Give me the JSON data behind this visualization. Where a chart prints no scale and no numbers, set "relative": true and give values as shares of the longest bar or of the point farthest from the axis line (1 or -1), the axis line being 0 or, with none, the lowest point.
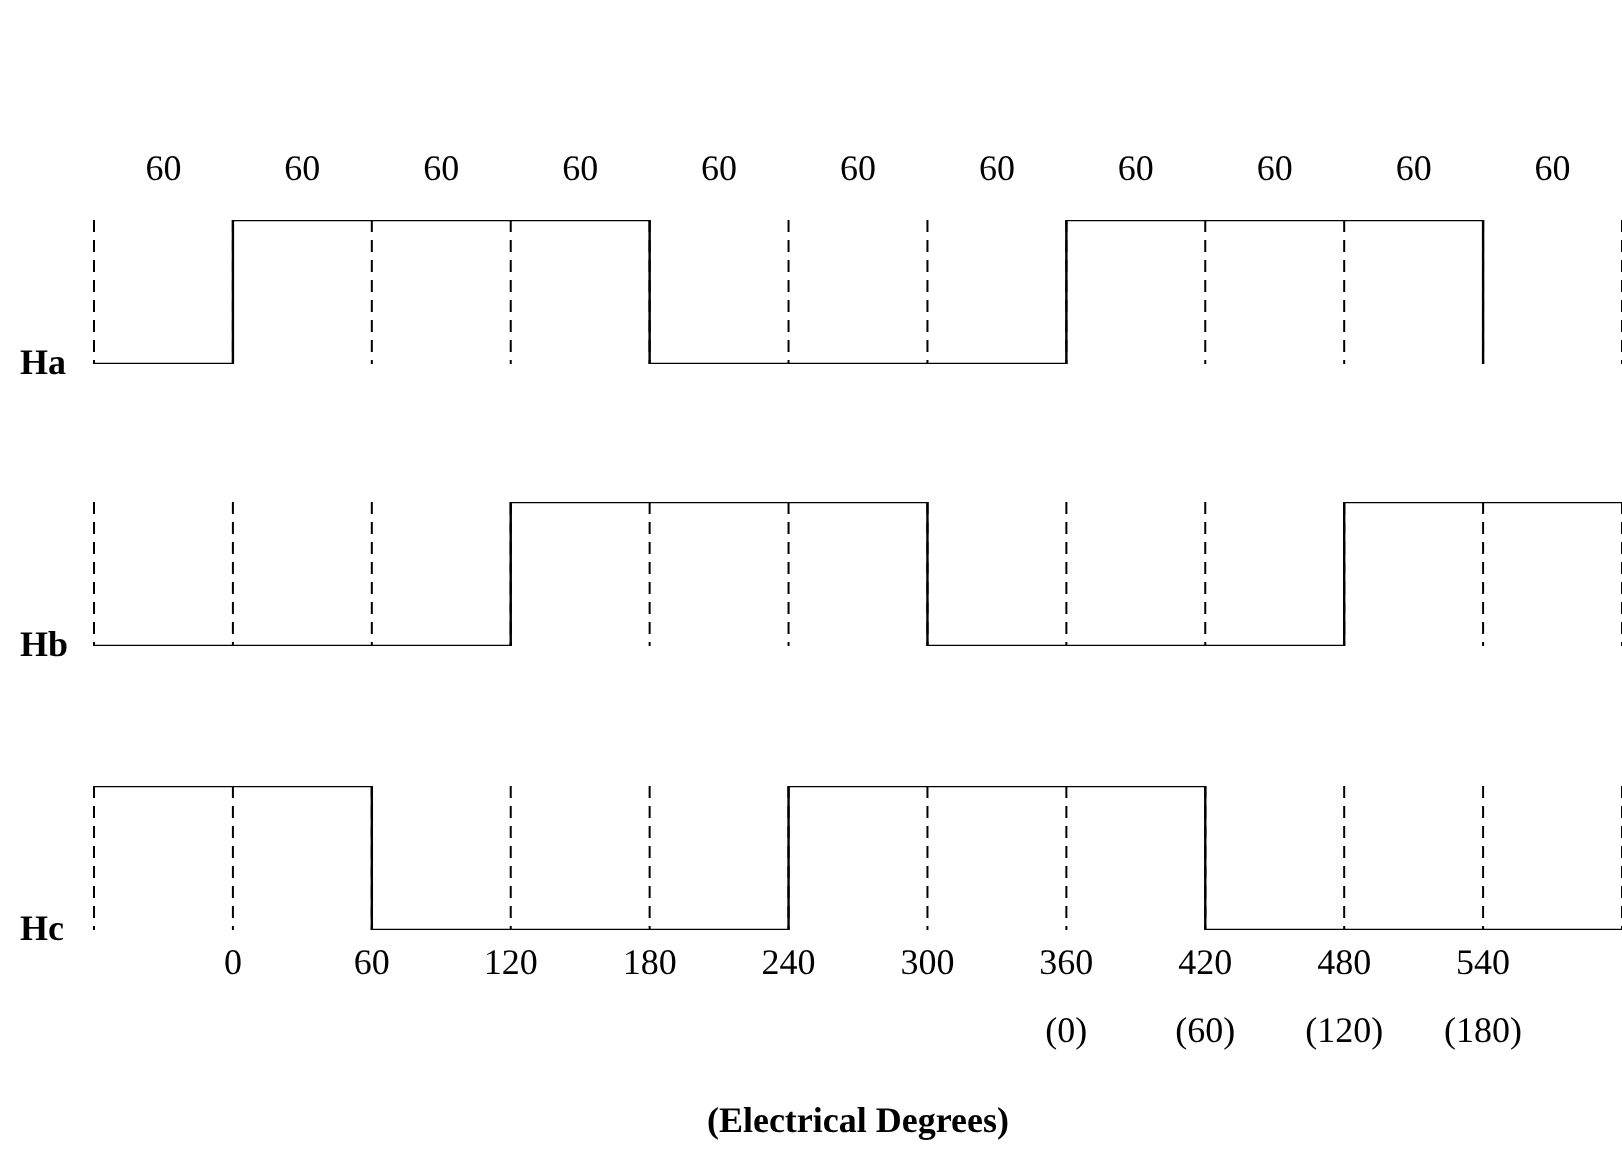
{
  "chart_data": [
    {
      "type": "step",
      "ylabel": "Ha",
      "relative": true,
      "xlim": [
        -60,
        600
      ],
      "xticks": [
        {
          "value": -60,
          "label": null
        },
        0,
        60,
        120,
        180,
        240,
        300,
        360,
        420,
        480,
        540,
        {
          "value": 600,
          "label": null
        }
      ],
      "annotations": [
        "60",
        "60",
        "60",
        "60",
        "60",
        "60",
        "60",
        "60",
        "60",
        "60",
        "60"
      ],
      "tick_labels": false,
      "grid": "x",
      "line_style": "solid",
      "marker": "none",
      "series": [
        {
          "color": "#000000",
          "x": [
            -60,
            0,
            180,
            360,
            540
          ],
          "values": [
            0,
            1,
            0,
            1,
            0
          ]
        }
      ]
    },
    {
      "type": "step",
      "ylabel": "Hb",
      "relative": true,
      "xlim": [
        -60,
        600
      ],
      "xticks": [
        {
          "value": -60,
          "label": null
        },
        0,
        60,
        120,
        180,
        240,
        300,
        360,
        420,
        480,
        540,
        {
          "value": 600,
          "label": null
        }
      ],
      "tick_labels": false,
      "grid": "x",
      "line_style": "solid",
      "marker": "none",
      "series": [
        {
          "color": "#000000",
          "x": [
            -60,
            120,
            300,
            480,
            600
          ],
          "values": [
            0,
            1,
            0,
            1,
            1
          ]
        }
      ]
    },
    {
      "type": "step",
      "ylabel": "Hc",
      "xlabel": "(Electrical Degrees)",
      "relative": true,
      "xlim": [
        -60,
        600
      ],
      "xticks": [
        {
          "value": -60,
          "label": null
        },
        0,
        60,
        120,
        180,
        240,
        300,
        {
          "value": 360,
          "label": "360\n(0)"
        },
        {
          "value": 420,
          "label": "420\n(60)"
        },
        {
          "value": 480,
          "label": "480\n(120)"
        },
        {
          "value": 540,
          "label": "540\n(180)"
        },
        {
          "value": 600,
          "label": null
        }
      ],
      "grid": "x",
      "line_style": "solid",
      "marker": "none",
      "series": [
        {
          "color": "#000000",
          "x": [
            -60,
            60,
            240,
            420,
            600
          ],
          "values": [
            1,
            0,
            1,
            0,
            0
          ]
        }
      ]
    }
  ]
}
